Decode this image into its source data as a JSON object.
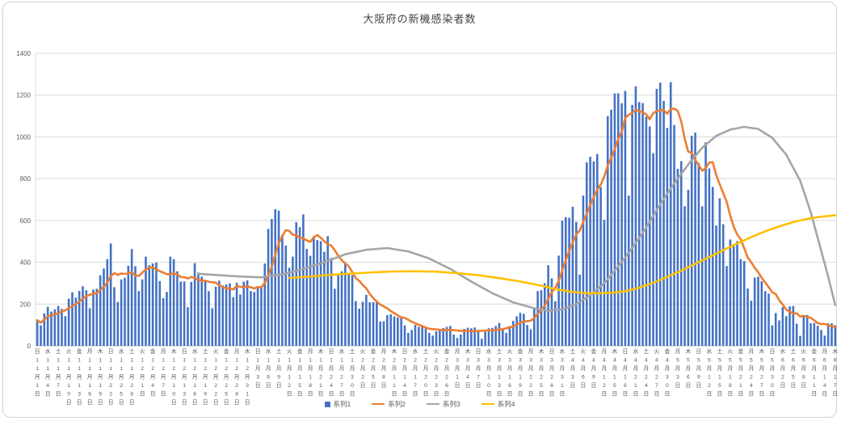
{
  "chart_data": {
    "type": "combo-bar-line",
    "title": "大阪府の新機感染者数",
    "ylim": [
      0,
      1400
    ],
    "ytick_step": 200,
    "x_range_note": "daily categories 2020-11-01 through 2021-06-17, tick label every 3 days",
    "grid": true,
    "legend_position": "bottom",
    "colors": {
      "bar": "#4472C4",
      "line2": "#ED7D31",
      "line3": "#A5A5A5",
      "line4": "#FFC000",
      "gridline": "#D9D9D9",
      "axis_text": "#595959"
    },
    "x_tick_labels": [
      "日 11月1日",
      "水 11月4日",
      "土 11月7日",
      "火 11月10日",
      "金 11月13日",
      "月 11月16日",
      "木 11月19日",
      "日 11月22日",
      "水 11月25日",
      "土 11月28日",
      "火 12月1日",
      "金 12月4日",
      "月 12月7日",
      "木 12月10日",
      "日 12月13日",
      "水 12月16日",
      "土 12月19日",
      "火 12月22日",
      "金 12月25日",
      "月 12月28日",
      "木 12月31日",
      "日 1月3日",
      "水 1月6日",
      "土 1月9日",
      "火 1月12日",
      "金 1月15日",
      "月 1月18日",
      "木 1月21日",
      "日 1月24日",
      "水 1月27日",
      "土 1月30日",
      "火 2月2日",
      "金 2月5日",
      "月 2月8日",
      "木 2月11日",
      "日 2月14日",
      "水 2月17日",
      "土 2月20日",
      "火 2月23日",
      "金 2月26日",
      "月 3月1日",
      "木 3月4日",
      "日 3月7日",
      "水 3月10日",
      "土 3月13日",
      "火 3月16日",
      "金 3月19日",
      "月 3月22日",
      "木 3月25日",
      "日 3月28日",
      "水 3月31日",
      "土 4月3日",
      "火 4月6日",
      "金 4月9日",
      "月 4月12日",
      "木 4月15日",
      "日 4月18日",
      "水 4月21日",
      "土 4月24日",
      "火 4月27日",
      "金 4月30日",
      "月 5月3日",
      "木 5月6日",
      "日 5月9日",
      "水 5月12日",
      "土 5月15日",
      "火 5月18日",
      "金 5月21日",
      "月 5月24日",
      "木 5月27日",
      "日 5月30日",
      "水 6月2日",
      "土 6月5日",
      "火 6月8日",
      "金 6月11日",
      "月 6月14日",
      "木 6月17日"
    ],
    "tick_every": 3,
    "series": [
      {
        "name": "系列1",
        "type": "bar",
        "color": "#4472C4",
        "values": [
          123,
          98,
          156,
          187,
          164,
          175,
          191,
          177,
          142,
          226,
          256,
          231,
          263,
          285,
          266,
          180,
          269,
          273,
          338,
          370,
          415,
          490,
          281,
          210,
          318,
          326,
          383,
          463,
          381,
          262,
          318,
          427,
          386,
          394,
          399,
          310,
          228,
          258,
          427,
          415,
          357,
          308,
          308,
          185,
          306,
          396,
          351,
          331,
          311,
          262,
          180,
          283,
          312,
          289,
          294,
          299,
          233,
          302,
          246,
          307,
          313,
          262,
          258,
          286,
          286,
          394,
          560,
          607,
          654,
          647,
          532,
          480,
          374,
          427,
          592,
          568,
          629,
          464,
          431,
          525,
          506,
          501,
          450,
          525,
          421,
          273,
          343,
          357,
          397,
          346,
          338,
          214,
          178,
          211,
          244,
          209,
          209,
          213,
          117,
          118,
          147,
          151,
          141,
          136,
          142,
          98,
          62,
          76,
          100,
          91,
          91,
          92,
          62,
          49,
          70,
          81,
          85,
          91,
          95,
          54,
          38,
          54,
          81,
          87,
          84,
          88,
          72,
          34,
          68,
          84,
          86,
          95,
          110,
          84,
          62,
          95,
          119,
          141,
          158,
          153,
          100,
          79,
          183,
          262,
          266,
          300,
          386,
          323,
          213,
          432,
          599,
          616,
          613,
          666,
          593,
          341,
          719,
          878,
          905,
          883,
          918,
          760,
          603,
          1099,
          1130,
          1208,
          1209,
          1161,
          1220,
          719,
          1153,
          1242,
          1167,
          1162,
          1097,
          1050,
          922,
          1230,
          1260,
          1172,
          1043,
          1262,
          1057,
          847,
          884,
          668,
          747,
          1005,
          1021,
          875,
          668,
          974,
          849,
          761,
          576,
          706,
          582,
          382,
          509,
          477,
          501,
          415,
          406,
          274,
          216,
          327,
          331,
          309,
          262,
          250,
          98,
          157,
          122,
          185,
          142,
          189,
          191,
          106,
          48,
          146,
          148,
          108,
          110,
          96,
          76,
          49,
          108,
          108,
          99
        ]
      },
      {
        "name": "系列2",
        "type": "line",
        "color": "#ED7D31",
        "derive": "trailing-7day-moving-average-of-series1"
      },
      {
        "name": "系列3",
        "type": "line",
        "color": "#A5A5A5",
        "points": [
          [
            46,
            345
          ],
          [
            52,
            338
          ],
          [
            58,
            332
          ],
          [
            64,
            328
          ],
          [
            70,
            342
          ],
          [
            76,
            368
          ],
          [
            82,
            400
          ],
          [
            88,
            438
          ],
          [
            94,
            460
          ],
          [
            100,
            468
          ],
          [
            106,
            452
          ],
          [
            112,
            418
          ],
          [
            118,
            368
          ],
          [
            124,
            308
          ],
          [
            130,
            252
          ],
          [
            136,
            208
          ],
          [
            142,
            180
          ],
          [
            146,
            168
          ],
          [
            150,
            174
          ],
          [
            154,
            200
          ],
          [
            158,
            242
          ],
          [
            162,
            300
          ],
          [
            166,
            380
          ],
          [
            170,
            468
          ],
          [
            174,
            566
          ],
          [
            178,
            678
          ],
          [
            182,
            778
          ],
          [
            186,
            868
          ],
          [
            190,
            948
          ],
          [
            194,
            1005
          ],
          [
            198,
            1035
          ],
          [
            202,
            1048
          ],
          [
            206,
            1038
          ],
          [
            210,
            996
          ],
          [
            214,
            915
          ],
          [
            218,
            790
          ],
          [
            221,
            640
          ],
          [
            224,
            455
          ],
          [
            226,
            330
          ],
          [
            228,
            195
          ]
        ]
      },
      {
        "name": "系列4",
        "type": "line",
        "color": "#FFC000",
        "points": [
          [
            72,
            325
          ],
          [
            78,
            332
          ],
          [
            84,
            340
          ],
          [
            90,
            346
          ],
          [
            96,
            352
          ],
          [
            102,
            356
          ],
          [
            108,
            357
          ],
          [
            114,
            355
          ],
          [
            120,
            348
          ],
          [
            126,
            338
          ],
          [
            132,
            324
          ],
          [
            138,
            308
          ],
          [
            144,
            288
          ],
          [
            148,
            272
          ],
          [
            152,
            260
          ],
          [
            156,
            253
          ],
          [
            160,
            251
          ],
          [
            164,
            254
          ],
          [
            168,
            262
          ],
          [
            172,
            278
          ],
          [
            176,
            302
          ],
          [
            180,
            330
          ],
          [
            184,
            360
          ],
          [
            188,
            392
          ],
          [
            192,
            425
          ],
          [
            196,
            458
          ],
          [
            200,
            490
          ],
          [
            204,
            520
          ],
          [
            208,
            548
          ],
          [
            212,
            572
          ],
          [
            216,
            592
          ],
          [
            220,
            608
          ],
          [
            224,
            618
          ],
          [
            228,
            625
          ]
        ]
      }
    ],
    "legend": [
      "系列1",
      "系列2",
      "系列3",
      "系列4"
    ]
  }
}
